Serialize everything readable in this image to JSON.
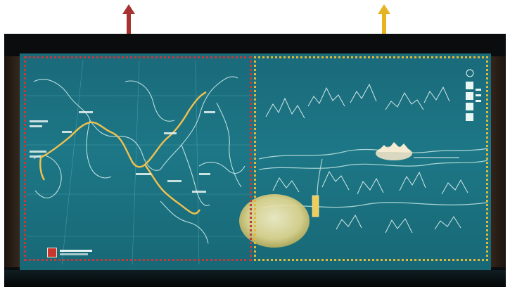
{
  "scene": {
    "description_free": true,
    "colors": {
      "left_arrow": "#a8322f",
      "right_arrow": "#e6b422",
      "left_border": "#c23a3a",
      "right_border": "#e0b93a",
      "screen": "#1b7382",
      "route": "#f2c14e",
      "line_art": "#d8f2f0"
    },
    "icons": [
      "up-arrow-icon",
      "up-arrow-icon",
      "museum-logo-icon"
    ]
  }
}
